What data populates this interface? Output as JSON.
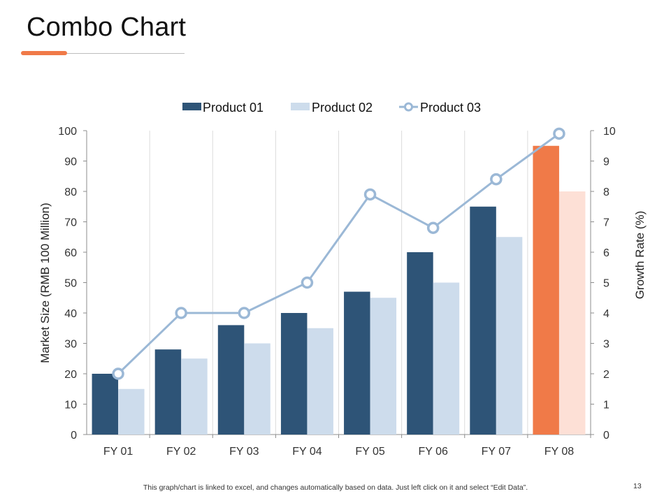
{
  "slide": {
    "title": "Combo Chart",
    "footer_note": "This graph/chart is linked to excel, and changes automatically based on data. Just left click on it and select “Edit Data”.",
    "page_number": "13"
  },
  "colors": {
    "accent": "#f07a48",
    "product01": "#2e5477",
    "product02": "#cddcec",
    "product03": "#9bb8d6",
    "highlight01": "#f07a48",
    "highlight02": "#fde0d6"
  },
  "chart_data": {
    "type": "bar",
    "categories": [
      "FY 01",
      "FY 02",
      "FY 03",
      "FY 04",
      "FY 05",
      "FY 06",
      "FY 07",
      "FY 08"
    ],
    "series": [
      {
        "name": "Product 01",
        "type": "bar",
        "axis": "left",
        "values": [
          20,
          28,
          36,
          40,
          47,
          60,
          75,
          95
        ]
      },
      {
        "name": "Product 02",
        "type": "bar",
        "axis": "left",
        "values": [
          15,
          25,
          30,
          35,
          45,
          50,
          65,
          80
        ]
      },
      {
        "name": "Product 03",
        "type": "line",
        "axis": "right",
        "values": [
          2,
          4,
          4,
          5,
          7.9,
          6.8,
          8.4,
          9.9
        ]
      }
    ],
    "highlight_category": "FY 08",
    "ylabel": "Market Size  (RMB 100 Million)",
    "y2label": "Growth Rate (%)",
    "ylim": [
      0,
      100
    ],
    "y2lim": [
      0,
      10
    ],
    "yticks": [
      "0",
      "10",
      "20",
      "30",
      "40",
      "50",
      "60",
      "70",
      "80",
      "90",
      "100"
    ],
    "y2ticks": [
      "0",
      "1",
      "2",
      "3",
      "4",
      "5",
      "6",
      "7",
      "8",
      "9",
      "10"
    ],
    "legend_position": "top"
  }
}
